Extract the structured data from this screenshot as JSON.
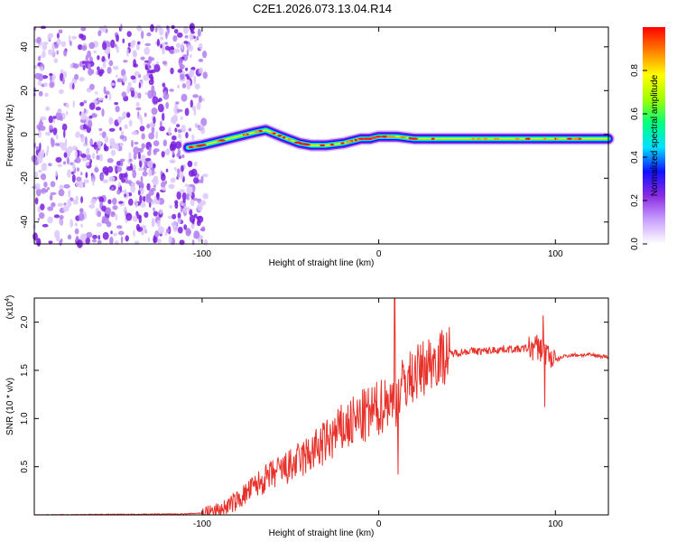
{
  "title": "C2E1.2026.073.13.04.R14",
  "colors": {
    "snr_line": "#e8312a",
    "frame": "#000000",
    "blob": "#8a2be2"
  },
  "chart_data": [
    {
      "type": "heatmap",
      "title": "C2E1.2026.073.13.04.R14",
      "xlabel": "Height of straight line (km)",
      "ylabel": "Frequency (Hz)",
      "xlim": [
        -195,
        130
      ],
      "ylim": [
        -50,
        49
      ],
      "xticks": [
        -100,
        0,
        100
      ],
      "yticks": [
        -40,
        -20,
        0,
        20,
        40
      ],
      "colorbar": {
        "label": "Normalized spectral amplitude",
        "range": [
          0,
          1
        ],
        "ticks": [
          "0.0",
          "0.2",
          "0.4",
          "0.6",
          "0.8"
        ],
        "colormap": [
          "#ffffff",
          "#c8a0ff",
          "#8a2be2",
          "#1010ff",
          "#00e0ff",
          "#00ff80",
          "#a0ff00",
          "#ffff00",
          "#ff8000",
          "#ff0000"
        ]
      },
      "noise_region_km": [
        -195,
        -101
      ],
      "signal_ridge": {
        "x_km": [
          -108,
          -100,
          -90,
          -80,
          -70,
          -64,
          -55,
          -45,
          -38,
          -30,
          -20,
          -10,
          -5,
          0,
          10,
          20,
          40,
          60,
          80,
          90,
          100,
          110,
          130
        ],
        "freq_hz": [
          -6,
          -5,
          -3,
          -1,
          1,
          2,
          -1,
          -4,
          -5,
          -5,
          -4,
          -2,
          -2,
          -1,
          -1,
          -2,
          -2,
          -2,
          -2,
          -2,
          -2,
          -2,
          -2
        ]
      }
    },
    {
      "type": "line",
      "xlabel": "Height of straight line (km)",
      "ylabel": "SNR (10 * v/v)",
      "y_scale_label": "(x10",
      "y_scale_exp": "4",
      "xlim": [
        -195,
        130
      ],
      "ylim": [
        0,
        2.25
      ],
      "xticks": [
        -100,
        0,
        100
      ],
      "yticks": [
        0.5,
        1.0,
        1.5,
        2.0
      ],
      "envelope": {
        "x_km": [
          -195,
          -110,
          -100,
          -90,
          -80,
          -70,
          -60,
          -50,
          -40,
          -30,
          -20,
          -10,
          0,
          5,
          8,
          10,
          12,
          15,
          20,
          30,
          40,
          50,
          60,
          70,
          80,
          85,
          90,
          95,
          100,
          105,
          110,
          120,
          130
        ],
        "y": [
          0.0,
          0.01,
          0.02,
          0.05,
          0.15,
          0.3,
          0.42,
          0.5,
          0.62,
          0.75,
          0.9,
          1.0,
          1.1,
          1.2,
          1.15,
          1.22,
          1.3,
          1.38,
          1.45,
          1.6,
          1.67,
          1.7,
          1.7,
          1.72,
          1.72,
          1.73,
          1.74,
          1.68,
          1.6,
          1.65,
          1.66,
          1.66,
          1.64
        ]
      },
      "spikes": [
        {
          "x_km": 9,
          "y": 2.25
        },
        {
          "x_km": 11,
          "y": 0.42
        },
        {
          "x_km": 93,
          "y": 2.07
        },
        {
          "x_km": 94,
          "y": 1.12
        }
      ]
    }
  ]
}
